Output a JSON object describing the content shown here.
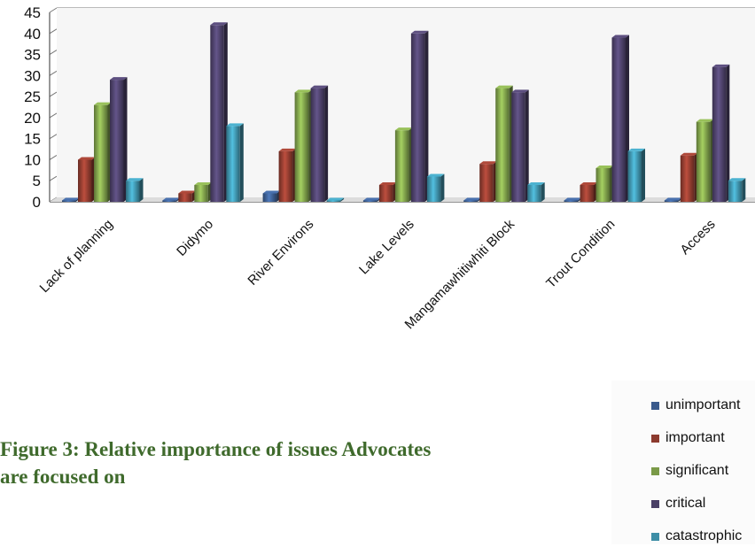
{
  "chart_data": {
    "type": "bar",
    "categories": [
      "Lack of planning",
      "Didymo",
      "River Environs",
      "Lake Levels",
      "Mangamawhitiwhiti Block",
      "Trout Condition",
      "Access"
    ],
    "series": [
      {
        "name": "unimportant",
        "values": [
          0,
          0,
          2,
          0,
          0,
          0,
          0
        ],
        "color": "#3a5a8c"
      },
      {
        "name": "important",
        "values": [
          10,
          2,
          12,
          4,
          9,
          4,
          11
        ],
        "color": "#8c3a2e"
      },
      {
        "name": "significant",
        "values": [
          23,
          4,
          26,
          17,
          27,
          8,
          19
        ],
        "color": "#7a9a48"
      },
      {
        "name": "critical",
        "values": [
          29,
          42,
          27,
          40,
          26,
          39,
          32
        ],
        "color": "#4a3f66"
      },
      {
        "name": "catastrophic",
        "values": [
          5,
          18,
          0,
          6,
          4,
          12,
          5
        ],
        "color": "#3d8ea6"
      }
    ],
    "yticks": [
      0,
      5,
      10,
      15,
      20,
      25,
      30,
      35,
      40,
      45
    ],
    "ylim": [
      0,
      45
    ],
    "grid": true,
    "legend": "bottom-right"
  },
  "caption": {
    "line1": "Figure 3: Relative importance of issues Advocates",
    "line2": "are focused on"
  }
}
